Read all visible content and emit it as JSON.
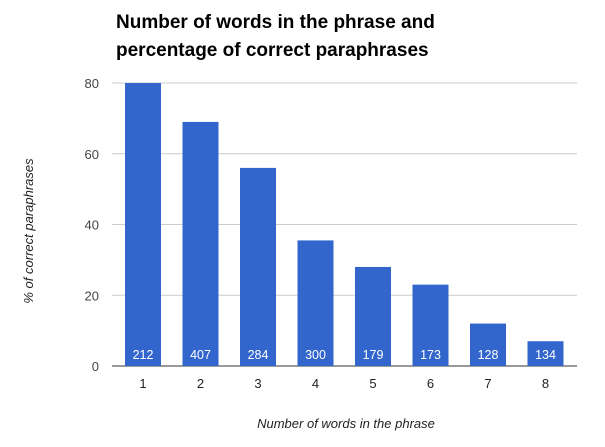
{
  "chart_data": {
    "type": "bar",
    "title_lines": [
      "Number of words in the phrase and",
      "percentage of correct paraphrases"
    ],
    "xlabel": "Number of words in the phrase",
    "ylabel": "% of correct paraphrases",
    "categories": [
      "1",
      "2",
      "3",
      "4",
      "5",
      "6",
      "7",
      "8"
    ],
    "values": [
      80,
      69,
      56,
      35.5,
      28,
      23,
      12,
      7
    ],
    "bar_labels": [
      "212",
      "407",
      "284",
      "300",
      "179",
      "173",
      "128",
      "134"
    ],
    "ylim": [
      0,
      80
    ],
    "yticks": [
      0,
      20,
      40,
      60,
      80
    ],
    "grid": true,
    "bar_color": "#3366cc"
  }
}
